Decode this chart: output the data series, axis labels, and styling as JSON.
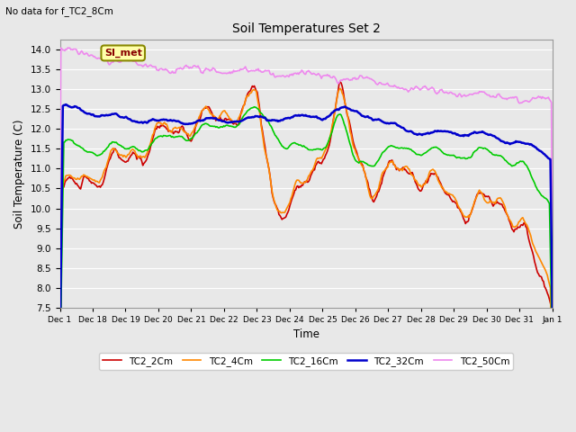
{
  "title": "Soil Temperatures Set 2",
  "subtitle": "No data for f_TC2_8Cm",
  "xlabel": "Time",
  "ylabel": "Soil Temperature (C)",
  "ylim": [
    7.5,
    14.25
  ],
  "yticks": [
    7.5,
    8.0,
    8.5,
    9.0,
    9.5,
    10.0,
    10.5,
    11.0,
    11.5,
    12.0,
    12.5,
    13.0,
    13.5,
    14.0
  ],
  "legend_label": "SI_met",
  "series": {
    "TC2_2Cm": {
      "color": "#cc0000",
      "lw": 1.2
    },
    "TC2_4Cm": {
      "color": "#ff8800",
      "lw": 1.2
    },
    "TC2_16Cm": {
      "color": "#00cc00",
      "lw": 1.2
    },
    "TC2_32Cm": {
      "color": "#0000cc",
      "lw": 1.8
    },
    "TC2_50Cm": {
      "color": "#ee88ee",
      "lw": 1.2
    }
  },
  "bg_color": "#e8e8e8",
  "plot_bg_color": "#e8e8e8",
  "grid_color": "#ffffff",
  "n_points": 500,
  "tick_labels": [
    "Dec 1",
    "Dec 18",
    "Dec 19",
    "Dec 20",
    "Dec 21",
    "Dec 22",
    "Dec 23",
    "Dec 24",
    "Dec 25",
    "Dec 26",
    "Dec 27",
    "Dec 28",
    "Dec 29",
    "Dec 30",
    "Dec 31",
    "Jan 1"
  ]
}
